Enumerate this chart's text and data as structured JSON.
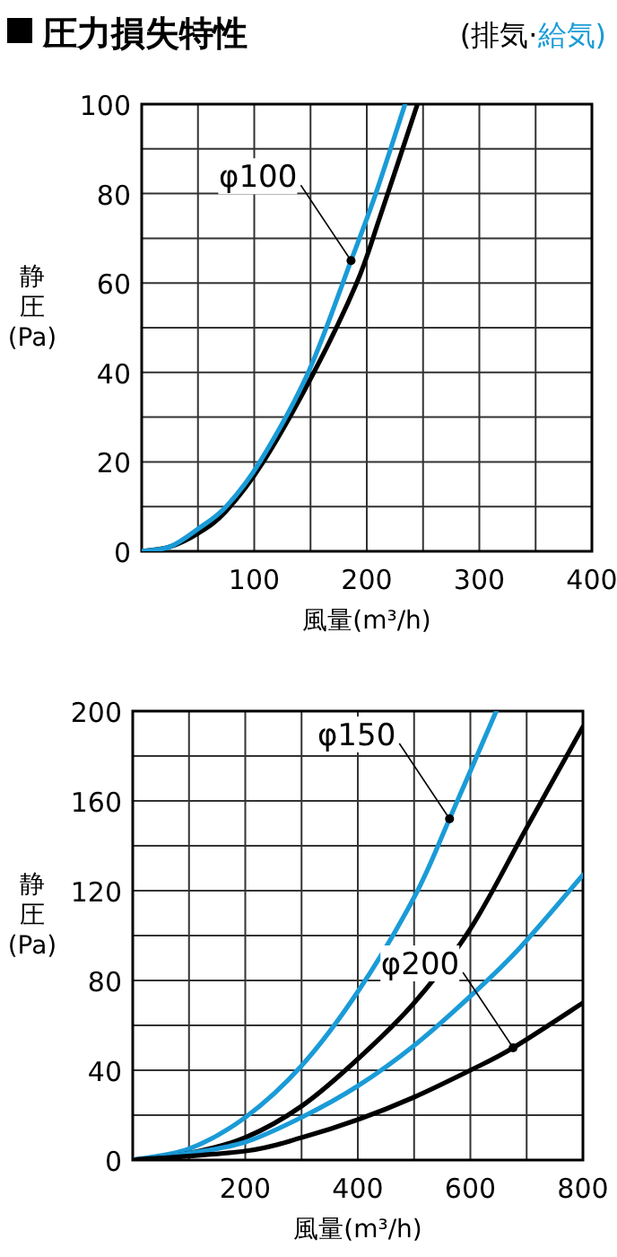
{
  "chart_data": [
    {
      "type": "line",
      "title": "圧力損失特性",
      "xlabel": "風量(m³/h)",
      "ylabel": "静圧(Pa)",
      "xlim": [
        0,
        400
      ],
      "ylim": [
        0,
        100
      ],
      "xticks": [
        {
          "value": 50,
          "label": null
        },
        100,
        {
          "value": 150,
          "label": null
        },
        200,
        {
          "value": 250,
          "label": null
        },
        300,
        {
          "value": 350,
          "label": null
        },
        400
      ],
      "yticks": [
        0,
        {
          "value": 10,
          "label": null
        },
        20,
        {
          "value": 30,
          "label": null
        },
        40,
        {
          "value": 50,
          "label": null
        },
        60,
        {
          "value": 70,
          "label": null
        },
        80,
        {
          "value": 90,
          "label": null
        },
        100
      ],
      "grid": true,
      "legend": "top right",
      "marker": "none",
      "line_style": "solid",
      "series": [
        {
          "name": "(排気·",
          "color": "#000000",
          "x": [
            0,
            25,
            50,
            75,
            108,
            153,
            191,
            212,
            245
          ],
          "values": [
            0,
            1,
            4,
            9,
            20,
            40,
            60,
            75,
            100
          ]
        },
        {
          "name": "給気)",
          "color": "#1a9bd7",
          "x": [
            0,
            25,
            50,
            75,
            105,
            148,
            186,
            208,
            234
          ],
          "values": [
            0,
            1,
            5,
            10,
            20,
            40,
            65,
            80,
            100
          ]
        }
      ],
      "annotations": [
        {
          "text": "φ100",
          "x": 186,
          "y": 65
        }
      ]
    },
    {
      "type": "line",
      "xlabel": "風量(m³/h)",
      "ylabel": "静圧(Pa)",
      "xlim": [
        0,
        800
      ],
      "ylim": [
        0,
        200
      ],
      "xticks": [
        {
          "value": 100,
          "label": null
        },
        200,
        {
          "value": 300,
          "label": null
        },
        400,
        {
          "value": 500,
          "label": null
        },
        600,
        {
          "value": 700,
          "label": null
        },
        800
      ],
      "yticks": [
        0,
        {
          "value": 20,
          "label": null
        },
        40,
        {
          "value": 60,
          "label": null
        },
        80,
        {
          "value": 100,
          "label": null
        },
        120,
        {
          "value": 140,
          "label": null
        },
        160,
        {
          "value": 180,
          "label": null
        },
        200
      ],
      "grid": true,
      "marker": "none",
      "line_style": "solid",
      "series": [
        {
          "color": "#1a9bd7",
          "x": [
            0,
            100,
            200,
            300,
            400,
            500,
            563,
            646
          ],
          "values": [
            0,
            5,
            19,
            42,
            75,
            117,
            152,
            200
          ]
        },
        {
          "color": "#000000",
          "x": [
            0,
            100,
            200,
            300,
            400,
            500,
            600,
            700,
            800
          ],
          "values": [
            0,
            3,
            10,
            24,
            45,
            70,
            103,
            148,
            193
          ]
        },
        {
          "color": "#1a9bd7",
          "x": [
            0,
            100,
            200,
            300,
            400,
            500,
            600,
            686,
            800
          ],
          "values": [
            0,
            3,
            8,
            19,
            33,
            51,
            73,
            94,
            127
          ]
        },
        {
          "color": "#000000",
          "x": [
            0,
            200,
            300,
            400,
            500,
            600,
            676,
            800
          ],
          "values": [
            0,
            4,
            10,
            18,
            28,
            40,
            50,
            70
          ]
        }
      ],
      "annotations": [
        {
          "text": "φ150",
          "x": 563,
          "y": 152
        },
        {
          "text": "φ200",
          "x": 676,
          "y": 50
        }
      ]
    }
  ]
}
